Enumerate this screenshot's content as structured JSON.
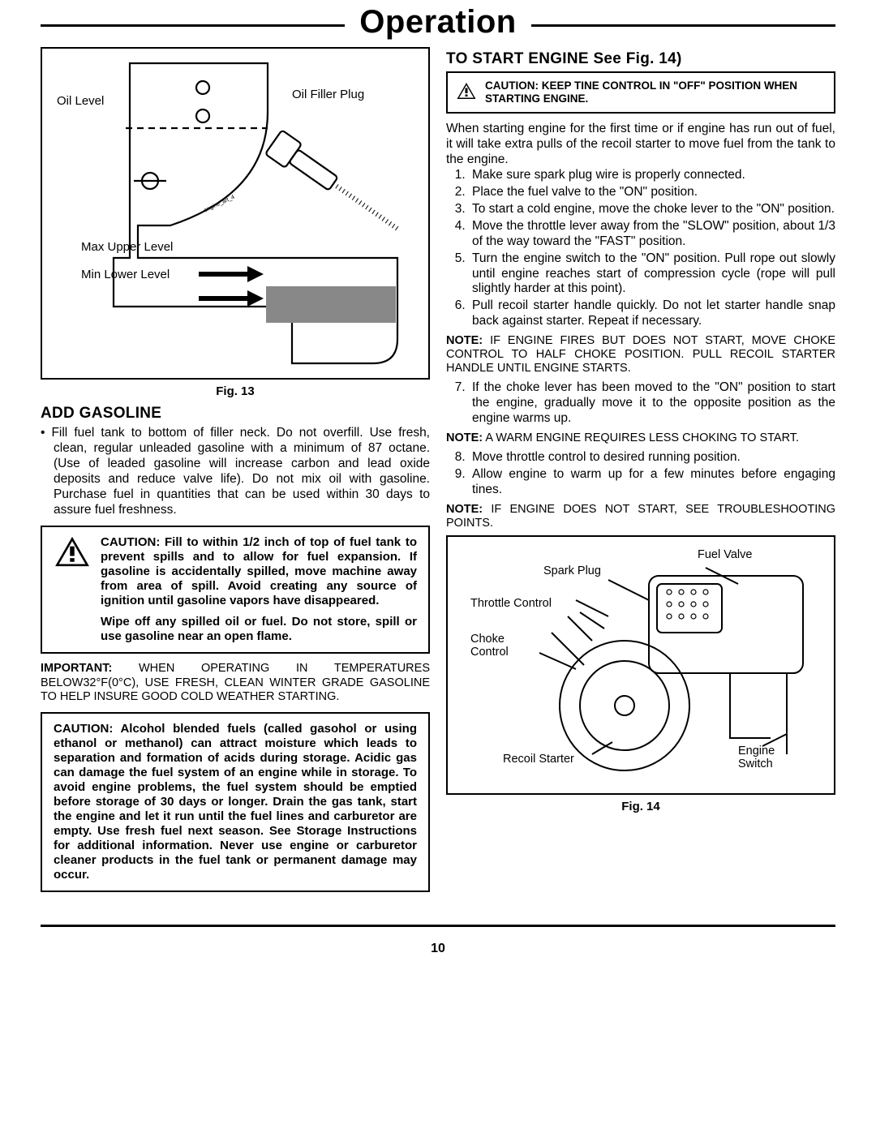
{
  "title": "Operation",
  "page_number": "10",
  "left": {
    "fig13": {
      "caption": "Fig. 13",
      "labels": {
        "oil_level": "Oil Level",
        "oil_filler_plug": "Oil Filler Plug",
        "max_upper": "Max Upper Level",
        "min_lower": "Min Lower Level",
        "tiny": "engine_art_4"
      }
    },
    "add_gasoline": {
      "heading": "ADD GASOLINE",
      "bullet": "Fill fuel tank to bottom of filler neck. Do not overfill. Use fresh, clean, regular unleaded gasoline with a minimum of 87 octane.  (Use of  leaded gasoline will increase carbon and lead oxide deposits and reduce valve life).  Do not mix oil with gasoline.  Purchase fuel in quantities that can be used within 30 days to assure fuel freshness."
    },
    "caution1": {
      "p1": "CAUTION:  Fill to within 1/2 inch of top of fuel tank to prevent spills and to allow for fuel expansion.  If gasoline is ac­cidentally spilled, move machine away from area of spill.  Avoid creating any source of ignition until gasoline vapors have disappeared.",
      "p2": "Wipe off any spilled oil or fuel.  Do not store, spill or use gasoline near an open flame."
    },
    "important": "IMPORTANT:  WHEN OPERATING IN TEMPERATURES BELOW32°F(0°C), USE FRESH, CLEAN WINTER GRADE GASOLINE TO HELP INSURE GOOD COLD WEATHER STARTING.",
    "caution2": "CAUTION:  Alcohol blended fuels (called gasohol or using ethanol or methanol) can at­tract moisture which leads to separation and formation of acids during storage.  Acidic gas can damage the fuel system of an engine while in storage.  To avoid engine problems, the fuel system should be emptied before storage of 30 days or longer.  Drain the gas tank, start the engine and let it run until the fuel lines and carburetor are empty.  Use fresh fuel next season.  See Storage Instructions for additional information.  Never use engine or carburetor cleaner products in the fuel tank or permanent damage may occur."
  },
  "right": {
    "start_engine": {
      "heading": "TO START ENGINE See Fig. 14)",
      "caution_small": "CAUTION:  KEEP TINE CONTROL IN \"OFF\" POSITION WHEN STARTING ENGINE.",
      "intro": "When starting engine for the first time or if engine has run out  of fuel, it will take extra pulls of the recoil starter to move fuel from the tank to the engine.",
      "steps_a": [
        "Make sure spark plug wire is properly connected.",
        "Place the fuel valve to the \"ON\" position.",
        "To start a cold engine, move the choke lever to the \"ON\" position.",
        "Move the throttle lever away from the \"SLOW\" position, about 1/3 of the way toward the \"FAST\" position.",
        "Turn the engine switch to the \"ON\" position. Pull rope out slowly until engine reaches start of compression cycle (rope will pull slightly harder at this point).",
        "Pull recoil starter handle quickly.  Do not let starter handle snap back against starter.  Repeat if neces­sary."
      ],
      "note1": "NOTE: IF ENGINE FIRES BUT DOES NOT START, MOVE CHOKE CONTROL TO HALF CHOKE POSITION. PULL RECOIL STARTER HANDLE UNTIL ENGINE STARTS.",
      "steps_b": [
        "If the choke lever has been moved to the \"ON\" position to start the engine, gradually move it to the opposite position as the engine warms up."
      ],
      "note2": "NOTE:  A WARM ENGINE REQUIRES LESS CHOKING TO START.",
      "steps_c": [
        "Move throttle control to desired running position.",
        "Allow engine to warm up for a few minutes before engaging tines."
      ],
      "note3": "NOTE:  IF ENGINE DOES NOT START, SEE TROUBLESHOOTING POINTS."
    },
    "fig14": {
      "caption": "Fig. 14",
      "labels": {
        "fuel_valve": "Fuel Valve",
        "spark_plug": "Spark Plug",
        "throttle": "Throttle Control",
        "choke": "Choke Control",
        "recoil": "Recoil Starter",
        "switch": "Engine Switch"
      }
    }
  }
}
